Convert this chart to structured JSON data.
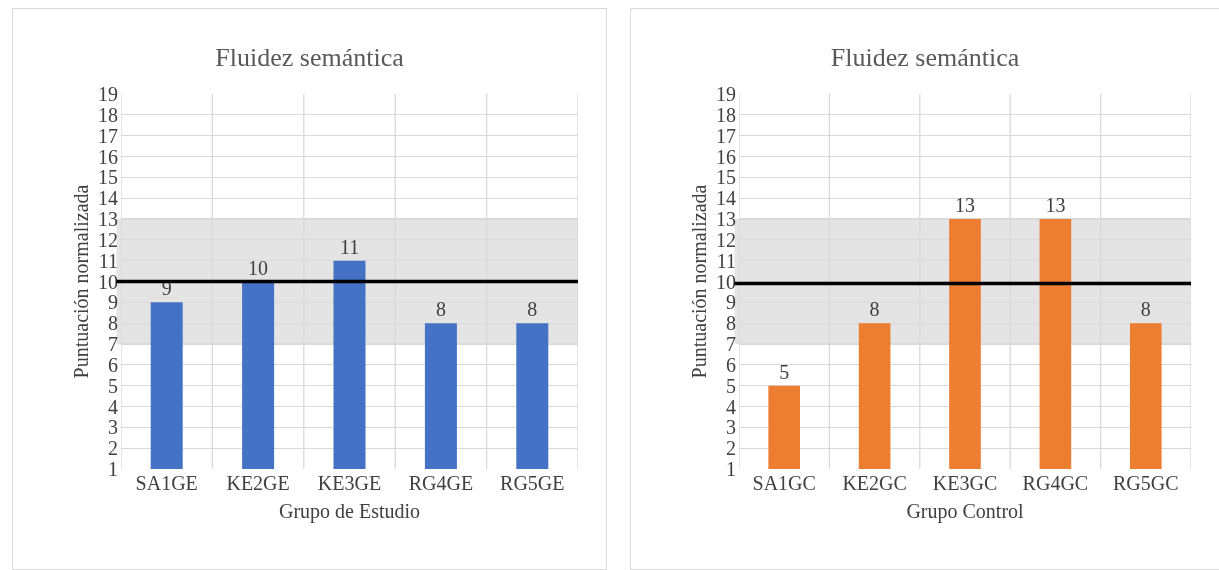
{
  "chart_data": [
    {
      "type": "bar",
      "title": "Fluidez semántica",
      "xlabel": "Grupo de Estudio",
      "ylabel": "Puntuación normalizada",
      "categories": [
        "SA1GE",
        "KE2GE",
        "KE3GE",
        "RG4GE",
        "RG5GE"
      ],
      "series": [
        {
          "color": "#4472c4",
          "values": [
            9,
            10,
            11,
            8,
            8
          ]
        }
      ],
      "data_labels": true,
      "ylim": [
        1,
        19
      ],
      "yticks": [
        1,
        2,
        3,
        4,
        5,
        6,
        7,
        8,
        9,
        10,
        11,
        12,
        13,
        14,
        15,
        16,
        17,
        18,
        19
      ],
      "grid": true,
      "bands": [
        {
          "axis": "y",
          "from": 7,
          "to": 13,
          "color": "#e4e4e4"
        }
      ],
      "ref_lines": [
        {
          "axis": "y",
          "value": 10,
          "color": "#000000"
        }
      ]
    },
    {
      "type": "bar",
      "title": "Fluidez semántica",
      "xlabel": "Grupo Control",
      "ylabel": "Puntuación normalizada",
      "categories": [
        "SA1GC",
        "KE2GC",
        "KE3GC",
        "RG4GC",
        "RG5GC"
      ],
      "series": [
        {
          "color": "#ed7d31",
          "values": [
            5,
            8,
            13,
            13,
            8
          ]
        }
      ],
      "data_labels": true,
      "ylim": [
        1,
        19
      ],
      "yticks": [
        1,
        2,
        3,
        4,
        5,
        6,
        7,
        8,
        9,
        10,
        11,
        12,
        13,
        14,
        15,
        16,
        17,
        18,
        19
      ],
      "grid": true,
      "bands": [
        {
          "axis": "y",
          "from": 7,
          "to": 13,
          "color": "#e4e4e4"
        }
      ],
      "ref_lines": [
        {
          "axis": "y",
          "value": 9.9,
          "color": "#000000"
        }
      ]
    }
  ]
}
